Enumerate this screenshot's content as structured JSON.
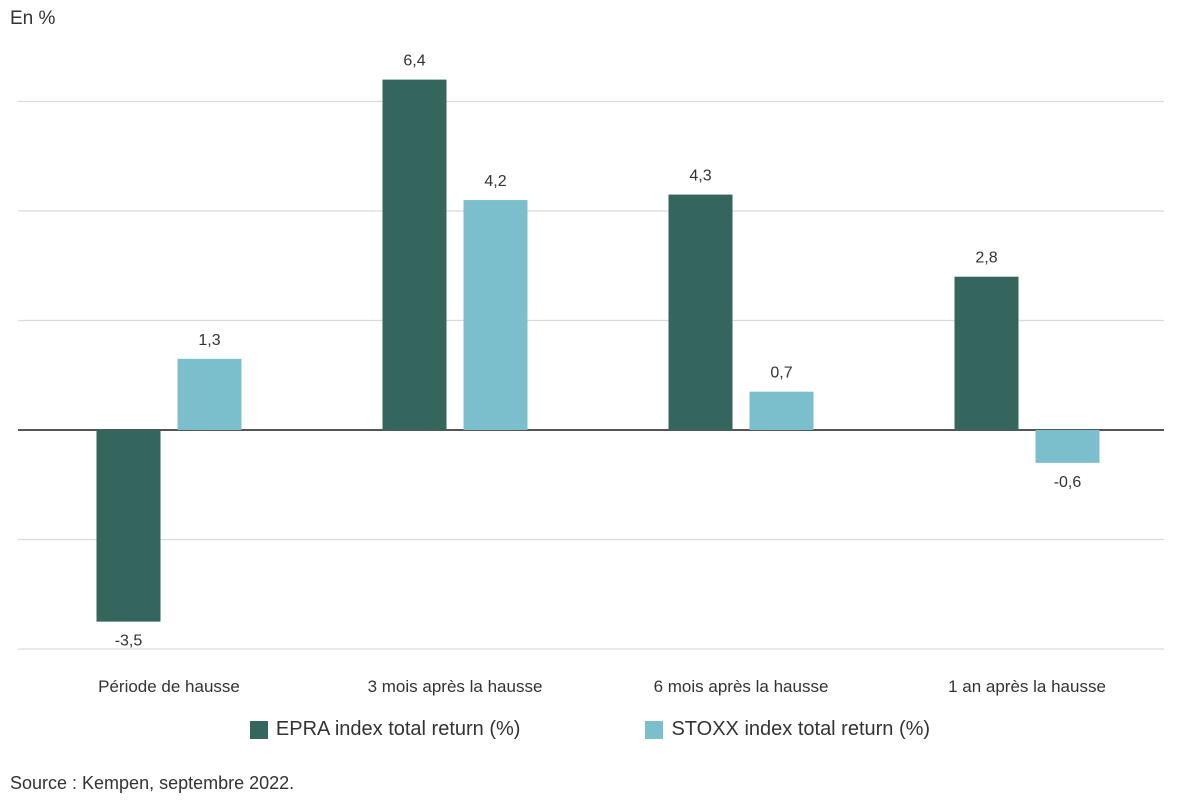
{
  "unit_label": "En %",
  "source": "Source : Kempen, septembre 2022.",
  "colors": {
    "epra": "#35665E",
    "stoxx": "#7BBFCC",
    "grid": "#DADADA",
    "axis": "#555555",
    "text": "#333333"
  },
  "chart_data": {
    "type": "bar",
    "categories": [
      "Période de hausse",
      "3 mois après la hausse",
      "6 mois après la hausse",
      "1 an après la hausse"
    ],
    "series": [
      {
        "name": "EPRA index total return (%)",
        "values": [
          -3.5,
          6.4,
          4.3,
          2.8
        ],
        "labels": [
          "-3,5",
          "6,4",
          "4,3",
          "2,8"
        ]
      },
      {
        "name": "STOXX index total return (%)",
        "values": [
          1.3,
          4.2,
          0.7,
          -0.6
        ],
        "labels": [
          "1,3",
          "4,2",
          "0,7",
          "-0,6"
        ]
      }
    ],
    "ylim": [
      -4,
      6
    ],
    "gridlines": [
      -4,
      -2,
      0,
      2,
      4,
      6
    ],
    "grid": true,
    "legend_position": "bottom"
  }
}
